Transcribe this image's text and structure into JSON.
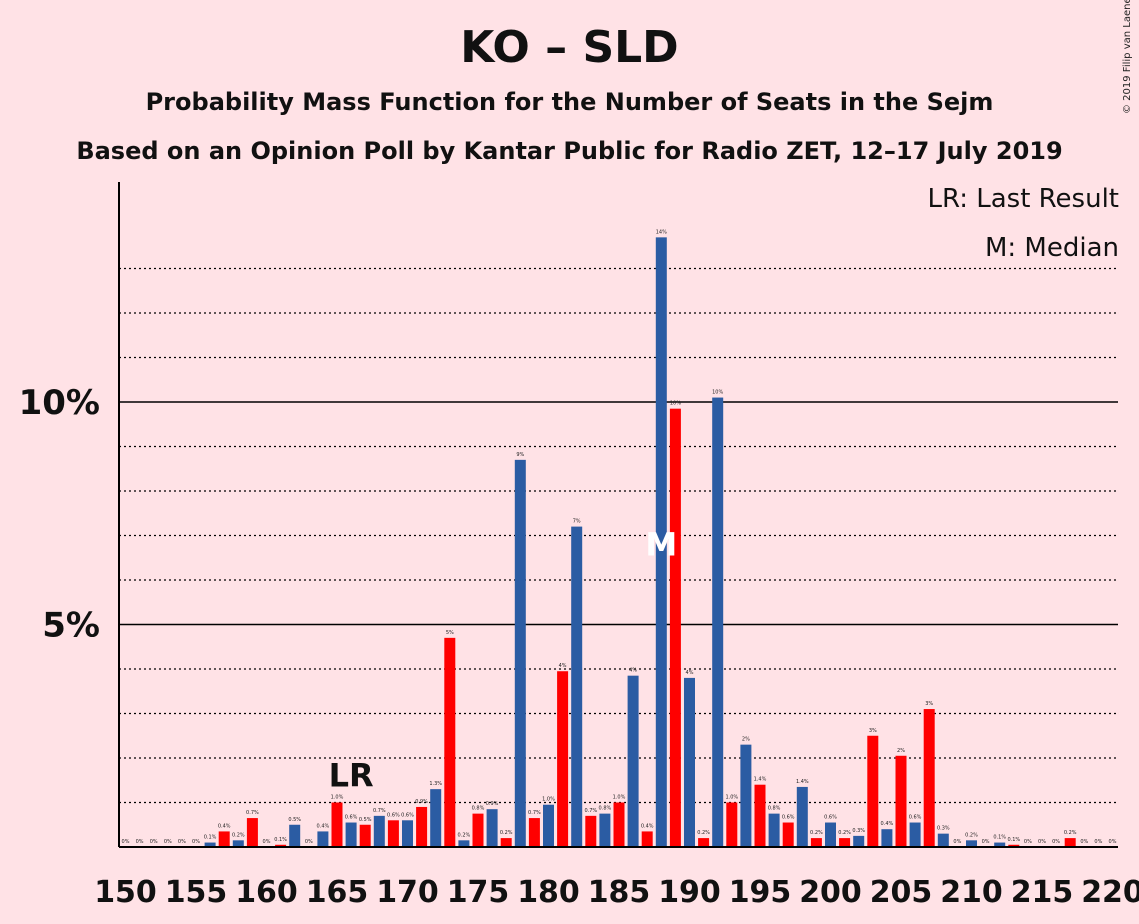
{
  "chart_data": {
    "type": "bar",
    "title": "KO – SLD",
    "subtitle": "Probability Mass Function for the Number of Seats in the Sejm",
    "subtitle2": "Based on an Opinion Poll by Kantar Public for Radio ZET, 12–17 July 2019",
    "copyright": "© 2019 Filip van Laenen",
    "legend": {
      "lr": "LR: Last Result",
      "median": "M: Median"
    },
    "x_start": 150,
    "x_end": 220,
    "x_tick_labels": [
      "150",
      "155",
      "160",
      "165",
      "170",
      "175",
      "180",
      "185",
      "190",
      "195",
      "200",
      "205",
      "210",
      "215",
      "220"
    ],
    "y_tick_labels": [
      {
        "value": 5,
        "label": "5%"
      },
      {
        "value": 10,
        "label": "10%"
      }
    ],
    "ylim": [
      0,
      15
    ],
    "grid": "dotted every 1%, solid at 5% and 10%",
    "colors": {
      "even_seats": "#2b5ca3",
      "odd_seats": "#ff0000",
      "background": "#ffe2e6"
    },
    "last_result": {
      "seat": 166,
      "label": "LR"
    },
    "median": {
      "seat": 188,
      "label": "M"
    },
    "values": [
      {
        "seat": 150,
        "pct": 0.0,
        "label": "0%"
      },
      {
        "seat": 151,
        "pct": 0.0,
        "label": "0%"
      },
      {
        "seat": 152,
        "pct": 0.0,
        "label": "0%"
      },
      {
        "seat": 153,
        "pct": 0.0,
        "label": "0%"
      },
      {
        "seat": 154,
        "pct": 0.0,
        "label": "0%"
      },
      {
        "seat": 155,
        "pct": 0.0,
        "label": "0%"
      },
      {
        "seat": 156,
        "pct": 0.1,
        "label": "0.1%"
      },
      {
        "seat": 157,
        "pct": 0.35,
        "label": "0.4%"
      },
      {
        "seat": 158,
        "pct": 0.15,
        "label": "0.2%"
      },
      {
        "seat": 159,
        "pct": 0.65,
        "label": "0.7%"
      },
      {
        "seat": 160,
        "pct": 0.0,
        "label": "0%"
      },
      {
        "seat": 161,
        "pct": 0.05,
        "label": "0.1%"
      },
      {
        "seat": 162,
        "pct": 0.5,
        "label": "0.5%"
      },
      {
        "seat": 163,
        "pct": 0.0,
        "label": "0%"
      },
      {
        "seat": 164,
        "pct": 0.35,
        "label": "0.4%"
      },
      {
        "seat": 165,
        "pct": 1.0,
        "label": "1.0%"
      },
      {
        "seat": 166,
        "pct": 0.55,
        "label": "0.6%"
      },
      {
        "seat": 167,
        "pct": 0.5,
        "label": "0.5%"
      },
      {
        "seat": 168,
        "pct": 0.7,
        "label": "0.7%"
      },
      {
        "seat": 169,
        "pct": 0.6,
        "label": "0.6%"
      },
      {
        "seat": 170,
        "pct": 0.6,
        "label": "0.6%"
      },
      {
        "seat": 171,
        "pct": 0.9,
        "label": "0.9%"
      },
      {
        "seat": 172,
        "pct": 1.3,
        "label": "1.3%"
      },
      {
        "seat": 173,
        "pct": 4.7,
        "label": "5%"
      },
      {
        "seat": 174,
        "pct": 0.15,
        "label": "0.2%"
      },
      {
        "seat": 175,
        "pct": 0.75,
        "label": "0.8%"
      },
      {
        "seat": 176,
        "pct": 0.85,
        "label": "0.9%"
      },
      {
        "seat": 177,
        "pct": 0.2,
        "label": "0.2%"
      },
      {
        "seat": 178,
        "pct": 8.7,
        "label": "9%"
      },
      {
        "seat": 179,
        "pct": 0.65,
        "label": "0.7%"
      },
      {
        "seat": 180,
        "pct": 0.95,
        "label": "1.0%"
      },
      {
        "seat": 181,
        "pct": 3.95,
        "label": "4%"
      },
      {
        "seat": 182,
        "pct": 7.2,
        "label": "7%"
      },
      {
        "seat": 183,
        "pct": 0.7,
        "label": "0.7%"
      },
      {
        "seat": 184,
        "pct": 0.75,
        "label": "0.8%"
      },
      {
        "seat": 185,
        "pct": 1.0,
        "label": "1.0%"
      },
      {
        "seat": 186,
        "pct": 3.85,
        "label": "4%"
      },
      {
        "seat": 187,
        "pct": 0.35,
        "label": "0.4%"
      },
      {
        "seat": 188,
        "pct": 13.7,
        "label": "14%"
      },
      {
        "seat": 189,
        "pct": 9.85,
        "label": "10%"
      },
      {
        "seat": 190,
        "pct": 3.8,
        "label": "4%"
      },
      {
        "seat": 191,
        "pct": 0.2,
        "label": "0.2%"
      },
      {
        "seat": 192,
        "pct": 10.1,
        "label": "10%"
      },
      {
        "seat": 193,
        "pct": 1.0,
        "label": "1.0%"
      },
      {
        "seat": 194,
        "pct": 2.3,
        "label": "2%"
      },
      {
        "seat": 195,
        "pct": 1.4,
        "label": "1.4%"
      },
      {
        "seat": 196,
        "pct": 0.75,
        "label": "0.8%"
      },
      {
        "seat": 197,
        "pct": 0.55,
        "label": "0.6%"
      },
      {
        "seat": 198,
        "pct": 1.35,
        "label": "1.4%"
      },
      {
        "seat": 199,
        "pct": 0.2,
        "label": "0.2%"
      },
      {
        "seat": 200,
        "pct": 0.55,
        "label": "0.6%"
      },
      {
        "seat": 201,
        "pct": 0.2,
        "label": "0.2%"
      },
      {
        "seat": 202,
        "pct": 0.25,
        "label": "0.3%"
      },
      {
        "seat": 203,
        "pct": 2.5,
        "label": "3%"
      },
      {
        "seat": 204,
        "pct": 0.4,
        "label": "0.4%"
      },
      {
        "seat": 205,
        "pct": 2.05,
        "label": "2%"
      },
      {
        "seat": 206,
        "pct": 0.55,
        "label": "0.6%"
      },
      {
        "seat": 207,
        "pct": 3.1,
        "label": "3%"
      },
      {
        "seat": 208,
        "pct": 0.3,
        "label": "0.3%"
      },
      {
        "seat": 209,
        "pct": 0.0,
        "label": "0%"
      },
      {
        "seat": 210,
        "pct": 0.15,
        "label": "0.2%"
      },
      {
        "seat": 211,
        "pct": 0.0,
        "label": "0%"
      },
      {
        "seat": 212,
        "pct": 0.1,
        "label": "0.1%"
      },
      {
        "seat": 213,
        "pct": 0.05,
        "label": "0.1%"
      },
      {
        "seat": 214,
        "pct": 0.0,
        "label": "0%"
      },
      {
        "seat": 215,
        "pct": 0.0,
        "label": "0%"
      },
      {
        "seat": 216,
        "pct": 0.0,
        "label": "0%"
      },
      {
        "seat": 217,
        "pct": 0.2,
        "label": "0.2%"
      },
      {
        "seat": 218,
        "pct": 0.0,
        "label": "0%"
      },
      {
        "seat": 219,
        "pct": 0.0,
        "label": "0%"
      },
      {
        "seat": 220,
        "pct": 0.0,
        "label": "0%"
      }
    ]
  }
}
